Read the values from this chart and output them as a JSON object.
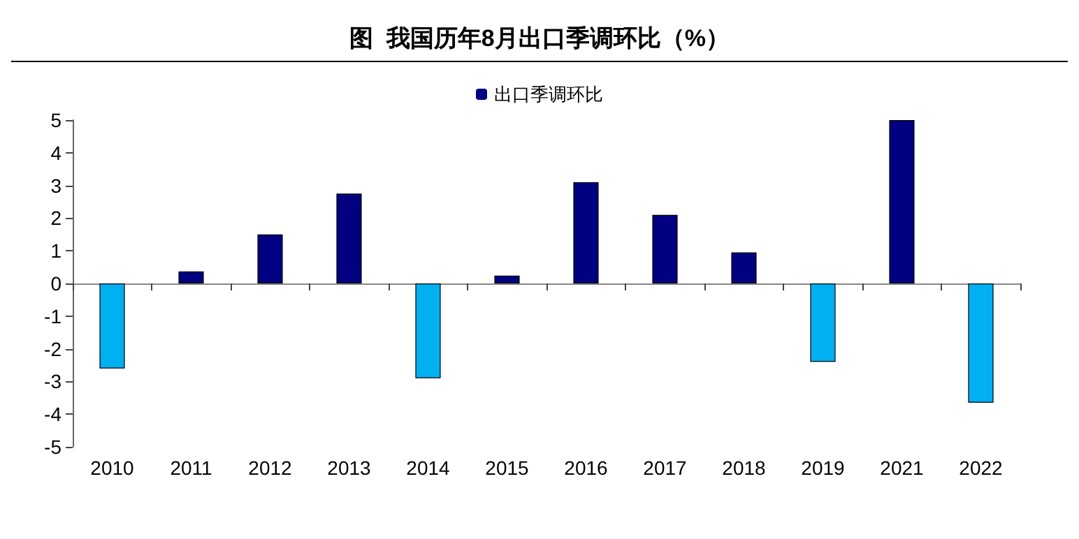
{
  "chart_data": {
    "type": "bar",
    "title": "图  我国历年8月出口季调环比（%）",
    "categories": [
      "2010",
      "2011",
      "2012",
      "2013",
      "2014",
      "2015",
      "2016",
      "2017",
      "2018",
      "2019",
      "2021",
      "2022"
    ],
    "series": [
      {
        "name": "出口季调环比",
        "color": "#000080",
        "colors": [
          "#00b0f0",
          "#000080",
          "#000080",
          "#000080",
          "#00b0f0",
          "#000080",
          "#000080",
          "#000080",
          "#000080",
          "#00b0f0",
          "#000080",
          "#00b0f0"
        ],
        "values": [
          -2.6,
          0.37,
          1.5,
          2.75,
          -2.9,
          0.24,
          3.1,
          2.1,
          0.95,
          -2.4,
          5.0,
          -3.65
        ]
      }
    ],
    "ylim": [
      -5,
      5
    ],
    "yticks": [
      -5,
      -4,
      -3,
      -2,
      -1,
      0,
      1,
      2,
      3,
      4,
      5
    ],
    "legend": "top"
  }
}
